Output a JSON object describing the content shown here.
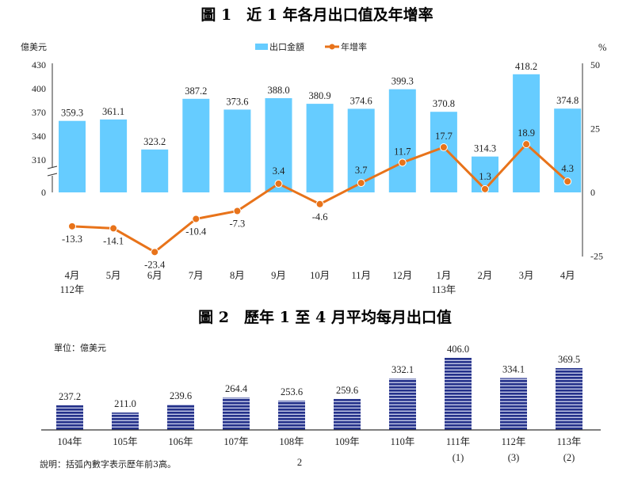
{
  "page_number": "2",
  "chart_data": [
    {
      "type": "bar+line",
      "title": "圖 1　近 1 年各月出口值及年增率",
      "ylabel_left": "億美元",
      "ylabel_right": "%",
      "yticks_left": [
        "430",
        "400",
        "370",
        "340",
        "310",
        "0"
      ],
      "yticks_right": [
        "50",
        "25",
        "0",
        "-25"
      ],
      "ylim_right": [
        -25,
        50
      ],
      "axis_break": true,
      "legend": {
        "placement": "top-center",
        "entries": [
          "出口金額",
          "年增率"
        ]
      },
      "categories": [
        "4月",
        "5月",
        "6月",
        "7月",
        "8月",
        "9月",
        "10月",
        "11月",
        "12月",
        "1月",
        "2月",
        "3月",
        "4月"
      ],
      "year_labels": [
        {
          "index": 0,
          "text": "112年"
        },
        {
          "index": 9,
          "text": "113年"
        }
      ],
      "series": [
        {
          "name": "出口金額",
          "type": "bar",
          "color": "#66ccff",
          "values": [
            359.3,
            361.1,
            323.2,
            387.2,
            373.6,
            388.0,
            380.9,
            374.6,
            399.3,
            370.8,
            314.3,
            418.2,
            374.8
          ],
          "labels": [
            "359.3",
            "361.1",
            "323.2",
            "387.2",
            "373.6",
            "388.0",
            "380.9",
            "374.6",
            "399.3",
            "370.8",
            "314.3",
            "418.2",
            "374.8"
          ]
        },
        {
          "name": "年增率",
          "type": "line",
          "color": "#e8731a",
          "values": [
            -13.3,
            -14.1,
            -23.4,
            -10.4,
            -7.3,
            3.4,
            -4.6,
            3.7,
            11.7,
            17.7,
            1.3,
            18.9,
            4.3
          ],
          "labels": [
            "-13.3",
            "-14.1",
            "-23.4",
            "-10.4",
            "-7.3",
            "3.4",
            "-4.6",
            "3.7",
            "11.7",
            "17.7",
            "1.3",
            "18.9",
            "4.3"
          ]
        }
      ]
    },
    {
      "type": "bar",
      "title": "圖 2　歷年 1 至 4 月平均每月出口值",
      "unit_label": "單位：億美元",
      "categories": [
        "104年",
        "105年",
        "106年",
        "107年",
        "108年",
        "109年",
        "110年",
        "111年",
        "112年",
        "113年"
      ],
      "rank_labels": [
        "",
        "",
        "",
        "",
        "",
        "",
        "",
        "(1)",
        "(3)",
        "(2)"
      ],
      "values": [
        237.2,
        211.0,
        239.6,
        264.4,
        253.6,
        259.6,
        332.1,
        406.0,
        334.1,
        369.5
      ],
      "labels": [
        "237.2",
        "211.0",
        "239.6",
        "264.4",
        "253.6",
        "259.6",
        "332.1",
        "406.0",
        "334.1",
        "369.5"
      ],
      "color": "#2a3a8c",
      "note": "說明：括弧內數字表示歷年前3高。"
    }
  ]
}
